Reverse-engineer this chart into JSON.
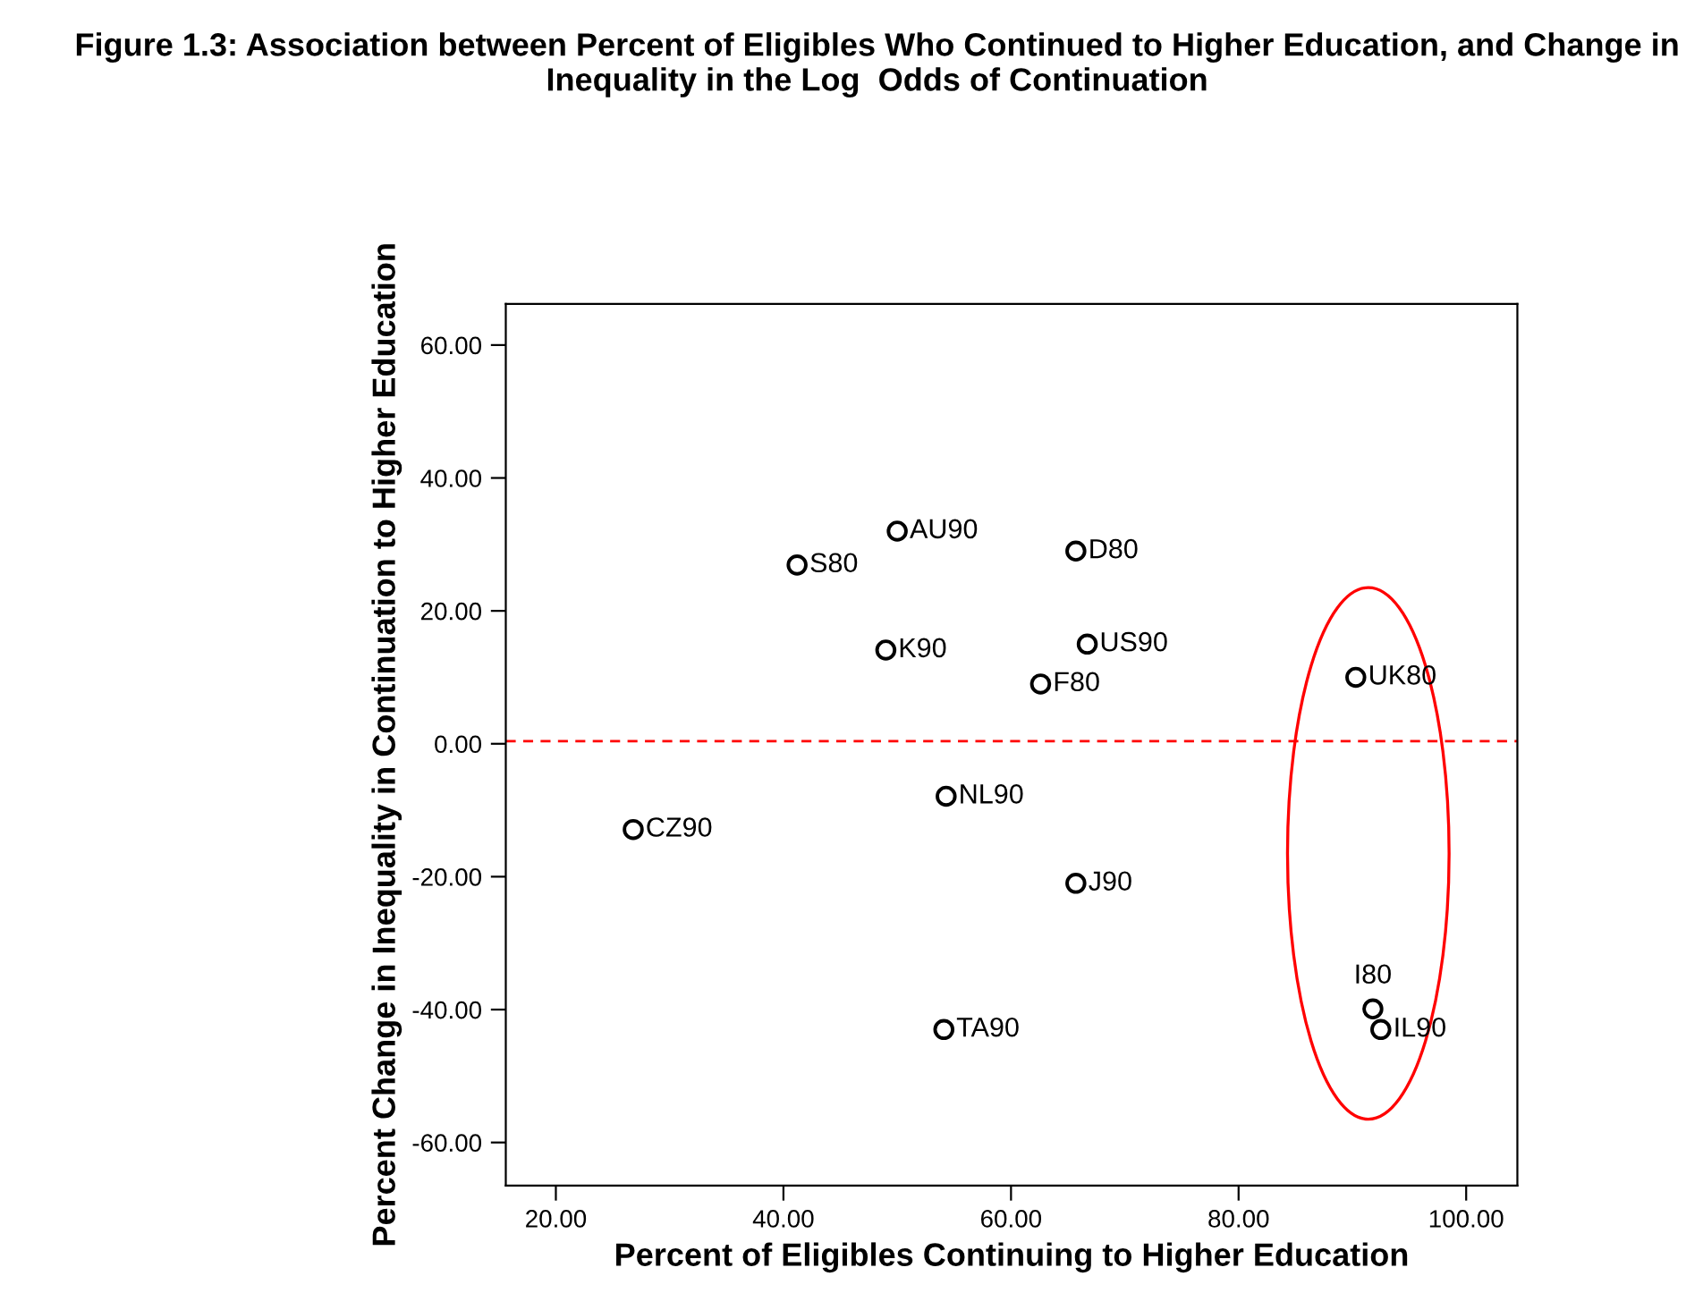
{
  "chart_data": {
    "type": "scatter",
    "title": "Figure 1.3: Association between Percent of Eligibles Who Continued to Higher Education, and Change in Inequality in the Log  Odds of Continuation",
    "xlabel": "Percent of Eligibles Continuing to Higher Education",
    "ylabel": "Percent Change in Inequality in Continuation to Higher Education",
    "series": [
      {
        "color": "#000000",
        "x": [
          26.8,
          41.2,
          50.0,
          49.0,
          65.7,
          66.7,
          62.6,
          54.3,
          65.7,
          54.1,
          90.3,
          91.8,
          92.5
        ],
        "values": [
          -12.9,
          26.9,
          32.0,
          14.1,
          29.0,
          15.0,
          9.0,
          -7.9,
          -21.0,
          -43.0,
          10.0,
          -39.9,
          -43.0
        ]
      }
    ],
    "annotations": [
      {
        "text": "CZ90",
        "x": 26.8,
        "y": -12.9
      },
      {
        "text": "S80",
        "x": 41.2,
        "y": 26.9
      },
      {
        "text": "AU90",
        "x": 50.0,
        "y": 32.0
      },
      {
        "text": "K90",
        "x": 49.0,
        "y": 14.1
      },
      {
        "text": "D80",
        "x": 65.7,
        "y": 29.0
      },
      {
        "text": "US90",
        "x": 66.7,
        "y": 15.0
      },
      {
        "text": "F80",
        "x": 62.6,
        "y": 9.0
      },
      {
        "text": "NL90",
        "x": 54.3,
        "y": -7.9
      },
      {
        "text": "J90",
        "x": 65.7,
        "y": -21.0
      },
      {
        "text": "TA90",
        "x": 54.1,
        "y": -43.0
      },
      {
        "text": "UK80",
        "x": 90.3,
        "y": 10.0
      },
      {
        "text": "I80",
        "x": 91.8,
        "y": -39.9
      },
      {
        "text": "IL90",
        "x": 92.5,
        "y": -43.0
      }
    ],
    "ref_lines": [
      {
        "axis": "y",
        "value": 0.4,
        "color": "#ff0000",
        "line_style": "dashed"
      }
    ],
    "marker": "circle",
    "xlim": [
      15.6,
      104.5
    ],
    "ylim": [
      -66.5,
      66.2
    ],
    "xticks": [
      {
        "value": 20,
        "label": "20.00"
      },
      {
        "value": 40,
        "label": "40.00"
      },
      {
        "value": 60,
        "label": "60.00"
      },
      {
        "value": 80,
        "label": "80.00"
      },
      {
        "value": 100,
        "label": "100.00"
      }
    ],
    "yticks": [
      {
        "value": -60,
        "label": "-60.00"
      },
      {
        "value": -40,
        "label": "-40.00"
      },
      {
        "value": -20,
        "label": "-20.00"
      },
      {
        "value": 0,
        "label": "0.00"
      },
      {
        "value": 20,
        "label": "20.00"
      },
      {
        "value": 40,
        "label": "40.00"
      },
      {
        "value": 60,
        "label": "60.00"
      }
    ],
    "grid": false,
    "legend": false
  }
}
